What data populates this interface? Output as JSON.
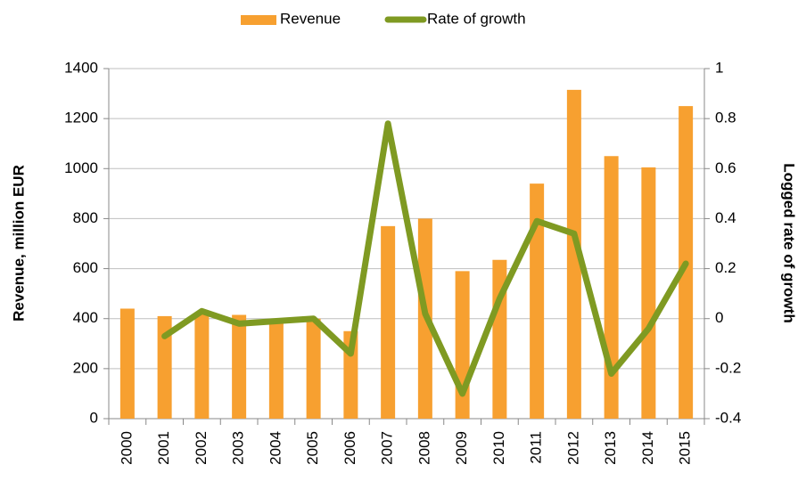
{
  "chart_data": {
    "type": "bar-line",
    "categories": [
      "2000",
      "2001",
      "2002",
      "2003",
      "2004",
      "2005",
      "2006",
      "2007",
      "2008",
      "2009",
      "2010",
      "2011",
      "2012",
      "2013",
      "2014",
      "2015"
    ],
    "series": [
      {
        "name": "Revenue",
        "type": "bar",
        "color": "#f7a030",
        "values": [
          440,
          410,
          420,
          415,
          400,
          400,
          350,
          770,
          800,
          590,
          635,
          940,
          1315,
          1050,
          1005,
          1250
        ]
      },
      {
        "name": "Rate of growth",
        "type": "line",
        "axis": "y2",
        "color": "#7f9a22",
        "values": [
          null,
          -0.07,
          0.03,
          -0.02,
          -0.01,
          0.0,
          -0.14,
          0.78,
          0.02,
          -0.3,
          0.08,
          0.39,
          0.34,
          -0.22,
          -0.04,
          0.22
        ]
      }
    ],
    "y_label": "Revenue, million EUR",
    "y2_label": "Logged rate of growth",
    "ylim": [
      0,
      1400
    ],
    "yticks": [
      0,
      200,
      400,
      600,
      800,
      1000,
      1200,
      1400
    ],
    "y2lim": [
      -0.4,
      1
    ],
    "y2ticks": [
      -0.4,
      -0.2,
      0,
      0.2,
      0.4,
      0.6,
      0.8,
      1
    ],
    "grid": true,
    "legend": "top"
  }
}
